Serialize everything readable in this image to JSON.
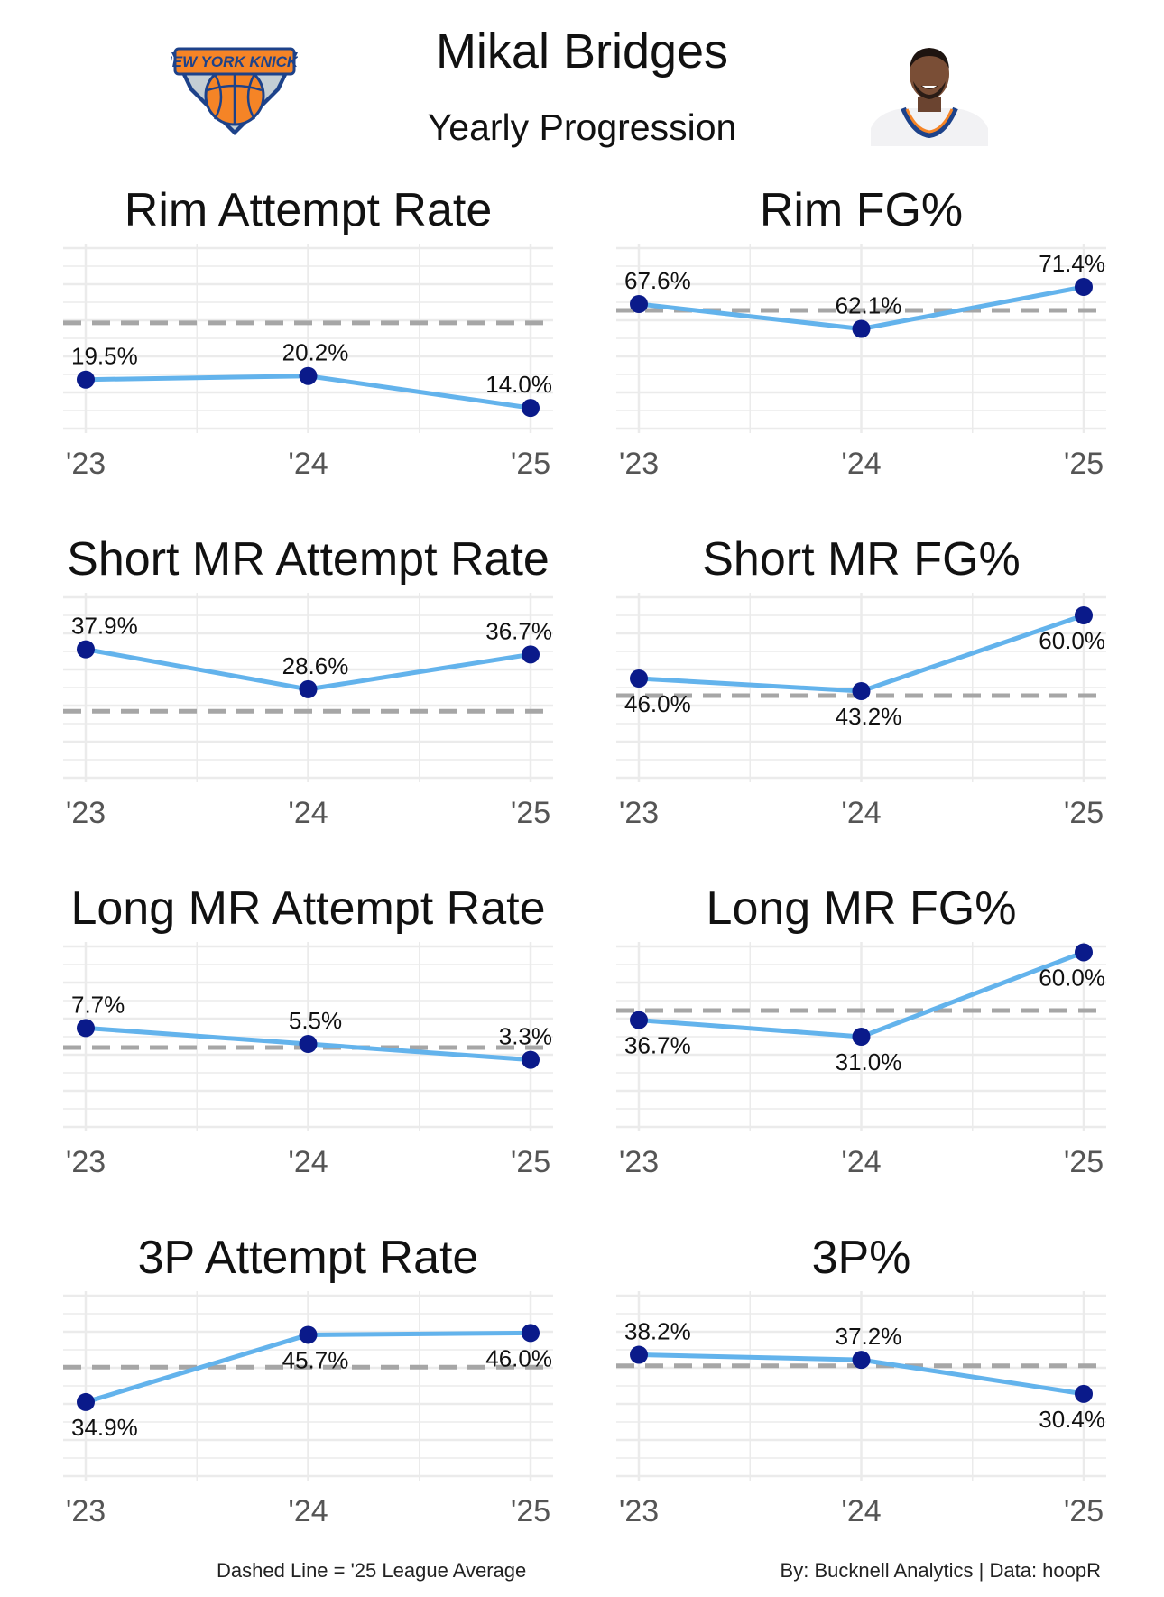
{
  "header": {
    "title": "Mikal Bridges",
    "subtitle": "Yearly Progression",
    "logo_text": "NEW YORK KNICKS"
  },
  "footer": {
    "left": "Dashed Line = '25 League Average",
    "right": "By: Bucknell Analytics | Data: hoopR"
  },
  "colors": {
    "line": "#63b3ec",
    "point": "#0a1a8a",
    "avg": "#a6a6a6",
    "grid": "#ebebeb",
    "logo_orange": "#f58426",
    "logo_blue": "#1d428a"
  },
  "chart_data": [
    {
      "type": "line",
      "title": "Rim Attempt Rate",
      "categories": [
        "'23",
        "'24",
        "'25"
      ],
      "values": [
        19.5,
        20.2,
        14.0
      ],
      "labels": [
        "19.5%",
        "20.2%",
        "14.0%"
      ],
      "label_pos": [
        "above",
        "above",
        "above"
      ],
      "league_avg": 30.5,
      "ylim": [
        10,
        45
      ]
    },
    {
      "type": "line",
      "title": "Rim FG%",
      "categories": [
        "'23",
        "'24",
        "'25"
      ],
      "values": [
        67.6,
        62.1,
        71.4
      ],
      "labels": [
        "67.6%",
        "62.1%",
        "71.4%"
      ],
      "label_pos": [
        "above",
        "above",
        "above"
      ],
      "league_avg": 66.2,
      "ylim": [
        40,
        80
      ]
    },
    {
      "type": "line",
      "title": "Short MR Attempt Rate",
      "categories": [
        "'23",
        "'24",
        "'25"
      ],
      "values": [
        37.9,
        28.6,
        36.7
      ],
      "labels": [
        "37.9%",
        "28.6%",
        "36.7%"
      ],
      "label_pos": [
        "above",
        "above",
        "above"
      ],
      "league_avg": 23.5,
      "ylim": [
        8,
        50
      ]
    },
    {
      "type": "line",
      "title": "Short MR FG%",
      "categories": [
        "'23",
        "'24",
        "'25"
      ],
      "values": [
        46.0,
        43.2,
        60.0
      ],
      "labels": [
        "46.0%",
        "43.2%",
        "60.0%"
      ],
      "label_pos": [
        "below",
        "below",
        "below"
      ],
      "league_avg": 42.2,
      "ylim": [
        24,
        64
      ]
    },
    {
      "type": "line",
      "title": "Long MR Attempt Rate",
      "categories": [
        "'23",
        "'24",
        "'25"
      ],
      "values": [
        7.7,
        5.5,
        3.3
      ],
      "labels": [
        "7.7%",
        "5.5%",
        "3.3%"
      ],
      "label_pos": [
        "above",
        "above",
        "above"
      ],
      "league_avg": 5.0,
      "ylim": [
        -6,
        19
      ]
    },
    {
      "type": "line",
      "title": "Long MR FG%",
      "categories": [
        "'23",
        "'24",
        "'25"
      ],
      "values": [
        36.7,
        31.0,
        60.0
      ],
      "labels": [
        "36.7%",
        "31.0%",
        "60.0%"
      ],
      "label_pos": [
        "below",
        "below",
        "below"
      ],
      "league_avg": 40.0,
      "ylim": [
        0,
        62
      ]
    },
    {
      "type": "line",
      "title": "3P Attempt Rate",
      "categories": [
        "'23",
        "'24",
        "'25"
      ],
      "values": [
        34.9,
        45.7,
        46.0
      ],
      "labels": [
        "34.9%",
        "45.7%",
        "46.0%"
      ],
      "label_pos": [
        "below",
        "below",
        "below"
      ],
      "league_avg": 40.5,
      "ylim": [
        23,
        52
      ]
    },
    {
      "type": "line",
      "title": "3P%",
      "categories": [
        "'23",
        "'24",
        "'25"
      ],
      "values": [
        38.2,
        37.2,
        30.4
      ],
      "labels": [
        "38.2%",
        "37.2%",
        "30.4%"
      ],
      "label_pos": [
        "above",
        "above",
        "below"
      ],
      "league_avg": 36.0,
      "ylim": [
        14,
        50
      ]
    }
  ]
}
